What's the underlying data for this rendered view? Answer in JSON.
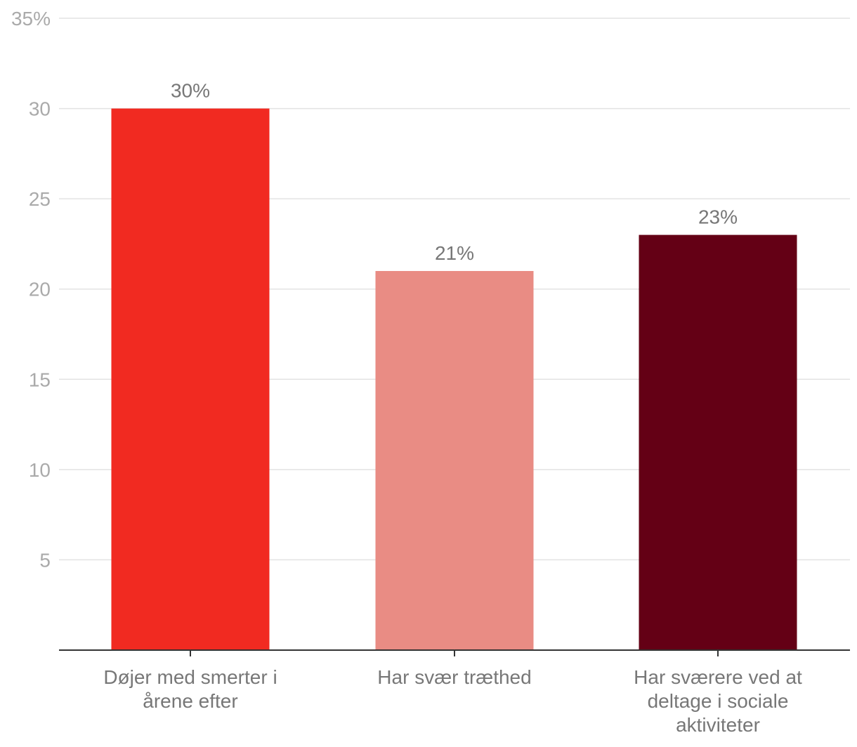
{
  "chart_data": {
    "type": "bar",
    "categories": [
      [
        "Døjer med smerter i",
        "årene efter"
      ],
      [
        "Har svær træthed"
      ],
      [
        "Har sværere ved at",
        "deltage i sociale",
        "aktiviteter"
      ]
    ],
    "values": [
      30,
      21,
      23
    ],
    "data_labels": [
      "30%",
      "21%",
      "23%"
    ],
    "colors": [
      "#f12a21",
      "#e98c84",
      "#640015"
    ],
    "y_ticks": [
      5,
      10,
      15,
      20,
      25,
      30,
      35
    ],
    "y_tick_labels": [
      "5",
      "10",
      "15",
      "20",
      "25",
      "30",
      "35%"
    ],
    "ylim": [
      0,
      35
    ],
    "grid": true,
    "legend": "none"
  }
}
